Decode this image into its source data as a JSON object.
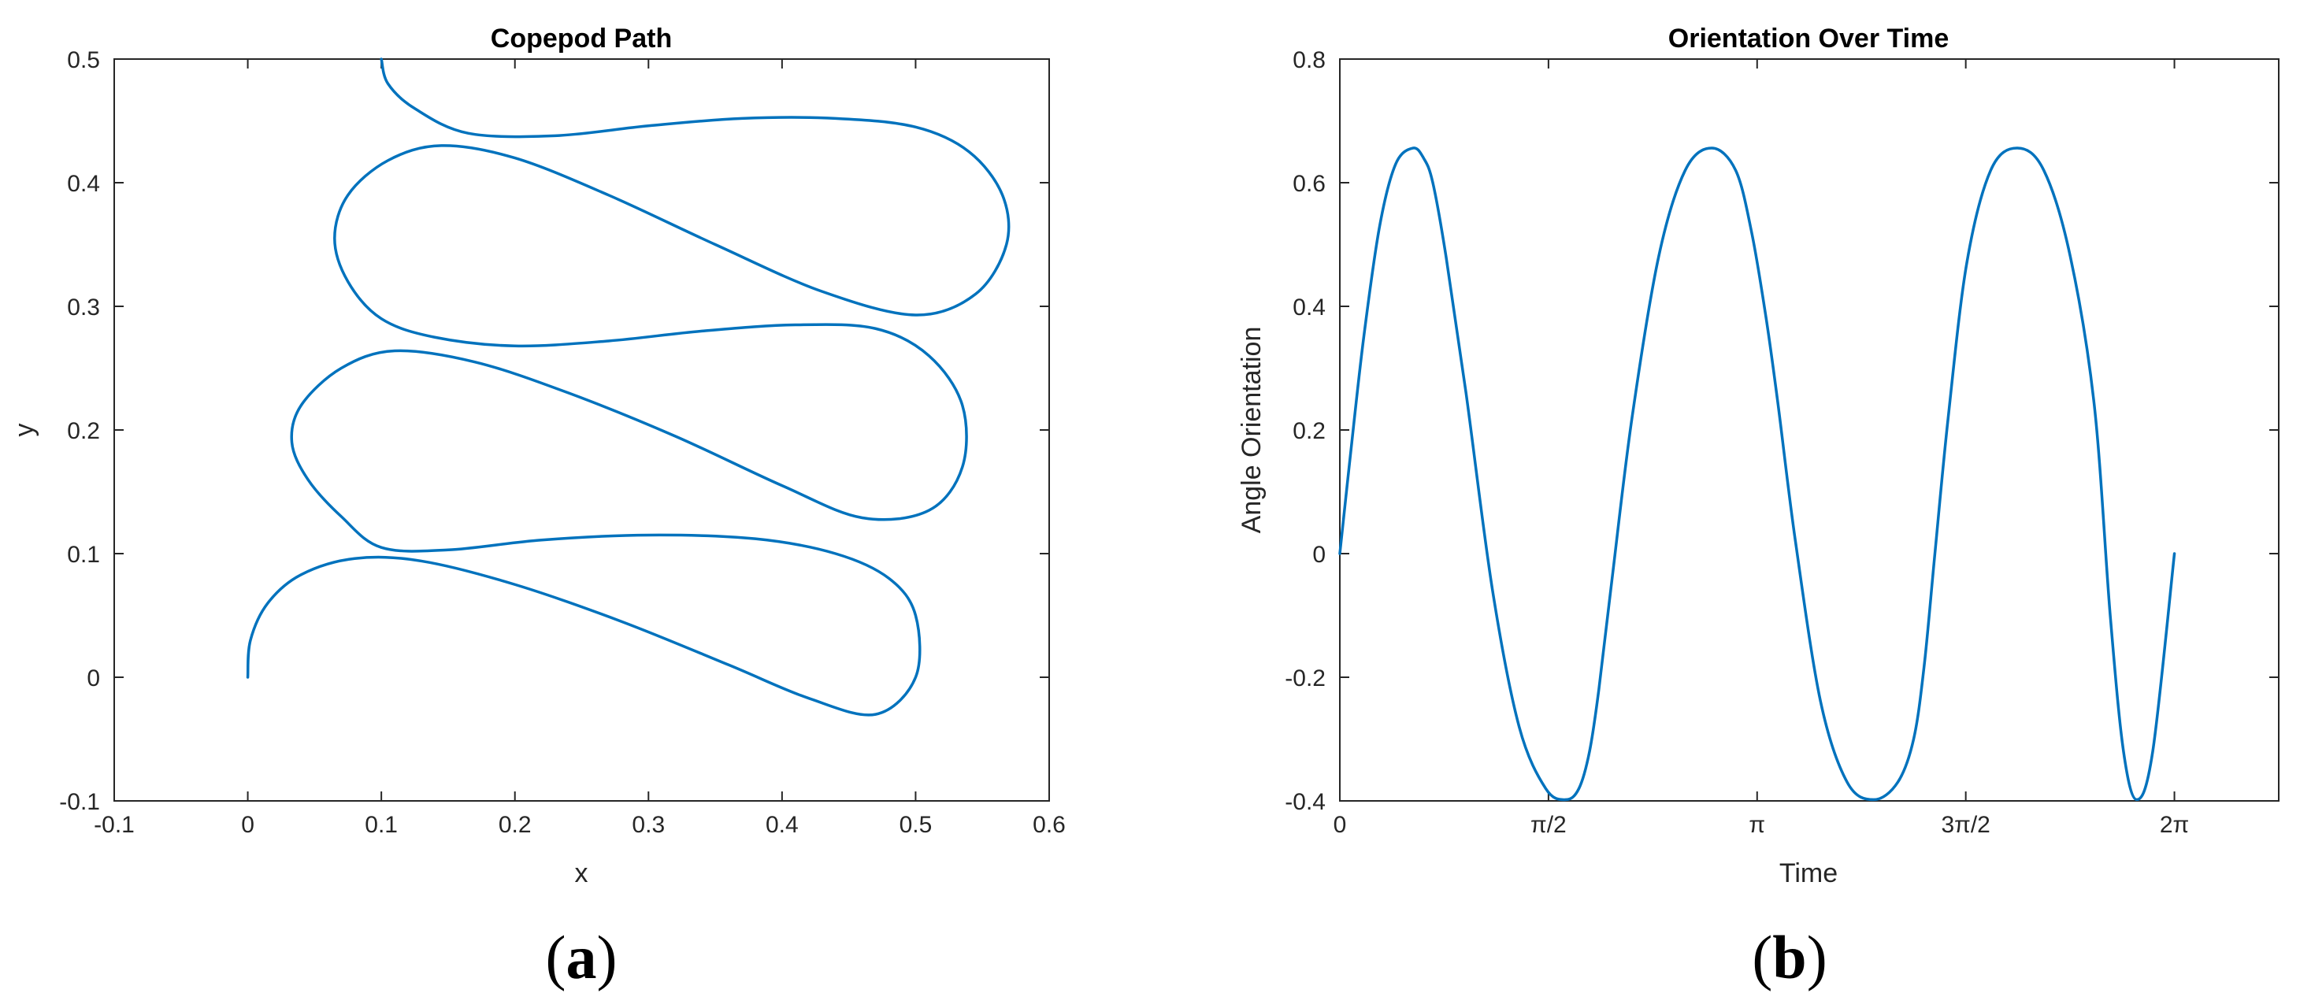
{
  "figure": {
    "panels": [
      {
        "label_open": "(",
        "label_letter": "a",
        "label_close": ")"
      },
      {
        "label_open": "(",
        "label_letter": "b",
        "label_close": ")"
      }
    ]
  },
  "colors": {
    "line": "#0072BD",
    "axes": "#262626",
    "background": "#ffffff"
  },
  "chart_data": [
    {
      "type": "line",
      "title": "Copepod Path",
      "xlabel": "x",
      "ylabel": "y",
      "xlim": [
        -0.1,
        0.6
      ],
      "ylim": [
        -0.1,
        0.5
      ],
      "xticks": [
        -0.1,
        0,
        0.1,
        0.2,
        0.3,
        0.4,
        0.5,
        0.6
      ],
      "xtick_labels": [
        "-0.1",
        "0",
        "0.1",
        "0.2",
        "0.3",
        "0.4",
        "0.5",
        "0.6"
      ],
      "yticks": [
        -0.1,
        0,
        0.1,
        0.2,
        0.3,
        0.4,
        0.5
      ],
      "ytick_labels": [
        "-0.1",
        "0",
        "0.1",
        "0.2",
        "0.3",
        "0.4",
        "0.5"
      ],
      "grid": false,
      "series": [
        {
          "x": [
            0.0,
            0.002,
            0.015,
            0.04,
            0.08,
            0.13,
            0.2,
            0.28,
            0.36,
            0.42,
            0.47,
            0.5,
            0.5,
            0.48,
            0.44,
            0.38,
            0.3,
            0.22,
            0.15,
            0.1,
            0.07,
            0.045,
            0.033,
            0.04,
            0.07,
            0.11,
            0.17,
            0.24,
            0.32,
            0.4,
            0.46,
            0.51,
            0.535,
            0.535,
            0.51,
            0.47,
            0.41,
            0.34,
            0.27,
            0.2,
            0.14,
            0.1,
            0.075,
            0.065,
            0.075,
            0.105,
            0.145,
            0.2,
            0.27,
            0.35,
            0.43,
            0.5,
            0.545,
            0.568,
            0.565,
            0.54,
            0.5,
            0.44,
            0.37,
            0.3,
            0.23,
            0.165,
            0.125,
            0.105,
            0.1
          ],
          "y": [
            0.0,
            0.03,
            0.06,
            0.083,
            0.096,
            0.094,
            0.075,
            0.045,
            0.01,
            -0.017,
            -0.03,
            0.0,
            0.05,
            0.08,
            0.1,
            0.112,
            0.115,
            0.111,
            0.103,
            0.105,
            0.13,
            0.16,
            0.19,
            0.22,
            0.25,
            0.264,
            0.255,
            0.23,
            0.195,
            0.155,
            0.129,
            0.135,
            0.17,
            0.22,
            0.26,
            0.282,
            0.285,
            0.28,
            0.272,
            0.268,
            0.275,
            0.29,
            0.32,
            0.355,
            0.39,
            0.418,
            0.43,
            0.42,
            0.39,
            0.35,
            0.312,
            0.293,
            0.31,
            0.35,
            0.39,
            0.425,
            0.445,
            0.452,
            0.452,
            0.446,
            0.438,
            0.44,
            0.46,
            0.48,
            0.5
          ]
        }
      ]
    },
    {
      "type": "line",
      "title": "Orientation Over Time",
      "xlabel": "Time",
      "ylabel": "Angle Orientation",
      "xlim": [
        0,
        7.0686
      ],
      "ylim": [
        -0.4,
        0.8
      ],
      "xticks": [
        0,
        1.5708,
        3.1416,
        4.7124,
        6.2832
      ],
      "xtick_labels": [
        "0",
        "π/2",
        "π",
        "3π/2",
        "2π"
      ],
      "yticks": [
        -0.4,
        -0.2,
        0,
        0.2,
        0.4,
        0.6,
        0.8
      ],
      "ytick_labels": [
        "-0.4",
        "-0.2",
        "0",
        "0.2",
        "0.4",
        "0.6",
        "0.8"
      ],
      "grid": false,
      "series": [
        {
          "x": [
            0,
            0.08,
            0.18,
            0.3,
            0.42,
            0.55,
            0.63,
            0.7,
            0.8,
            0.95,
            1.15,
            1.35,
            1.55,
            1.7,
            1.8,
            1.88,
            1.95,
            2.05,
            2.2,
            2.4,
            2.6,
            2.8,
            2.98,
            3.1,
            3.21,
            3.3,
            3.43,
            3.62,
            3.82,
            4.02,
            4.2,
            4.32,
            4.4,
            4.48,
            4.58,
            4.72,
            4.9,
            5.1,
            5.3,
            5.5,
            5.68,
            5.8,
            5.9,
            6.0,
            6.12,
            6.2832
          ],
          "y": [
            0.0,
            0.16,
            0.35,
            0.53,
            0.63,
            0.656,
            0.64,
            0.6,
            0.48,
            0.26,
            -0.06,
            -0.28,
            -0.38,
            -0.398,
            -0.38,
            -0.32,
            -0.22,
            -0.04,
            0.22,
            0.48,
            0.62,
            0.656,
            0.62,
            0.52,
            0.38,
            0.24,
            0.02,
            -0.24,
            -0.37,
            -0.398,
            -0.37,
            -0.3,
            -0.18,
            0.0,
            0.22,
            0.47,
            0.62,
            0.656,
            0.62,
            0.48,
            0.24,
            -0.1,
            -0.32,
            -0.398,
            -0.32,
            0.0
          ]
        }
      ]
    }
  ]
}
